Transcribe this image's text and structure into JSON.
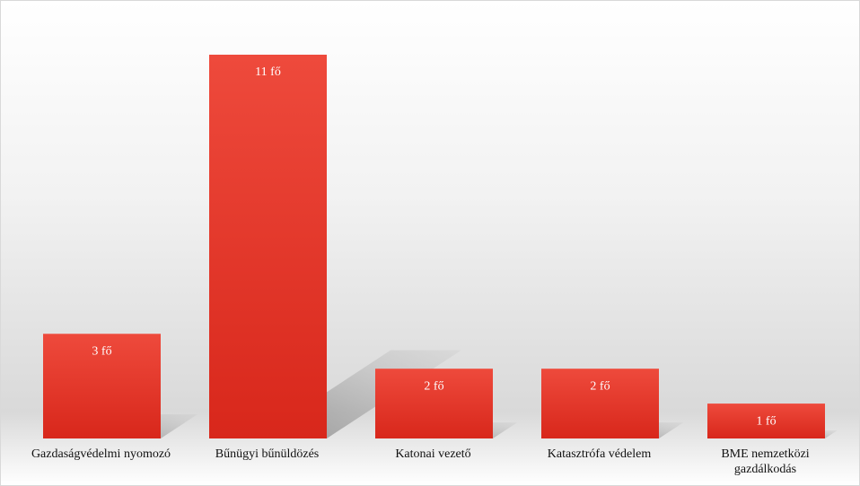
{
  "chart_data": {
    "type": "bar",
    "categories": [
      "Gazdaságvédelmi nyomozó",
      "Bűnügyi bűnüldözés",
      "Katonai vezető",
      "Katasztrófa védelem",
      "BME nemzetközi gazdálkodás"
    ],
    "values": [
      3,
      11,
      2,
      2,
      1
    ],
    "value_labels": [
      "3 fő",
      "11 fő",
      "2 fő",
      "2 fő",
      "1 fő"
    ],
    "color": "#e33a2c"
  }
}
